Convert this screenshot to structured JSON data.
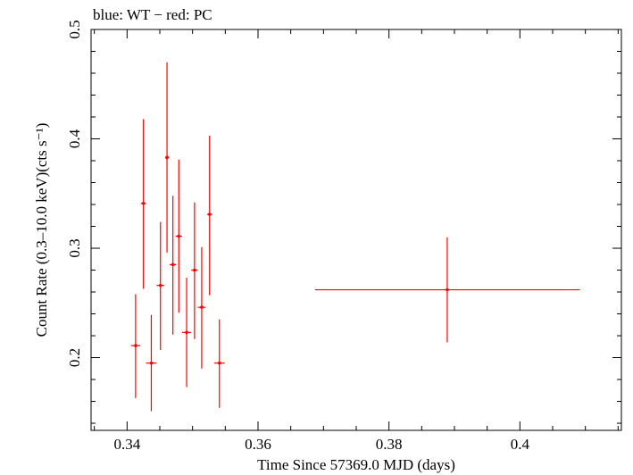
{
  "chart_data": {
    "type": "scatter",
    "title": "blue: WT − red: PC",
    "xlabel": "Time Since 57369.0 MJD (days)",
    "ylabel": "Count Rate (0.3–10.0 keV)(cts s⁻¹)",
    "xlim": [
      0.3345,
      0.4155
    ],
    "ylim": [
      0.1335,
      0.5
    ],
    "x_ticks": [
      0.34,
      0.36,
      0.38,
      0.4
    ],
    "x_tick_labels": [
      "0.34",
      "0.36",
      "0.38",
      "0.4"
    ],
    "y_ticks": [
      0.2,
      0.3,
      0.4,
      0.5
    ],
    "y_tick_labels": [
      "0.2",
      "0.3",
      "0.4",
      "0.5"
    ],
    "grid": false,
    "series": [
      {
        "color": "#ff0000",
        "points": [
          {
            "x": 0.3413,
            "y": 0.211,
            "xerr": 0.0007,
            "ylo": 0.163,
            "yhi": 0.258
          },
          {
            "x": 0.3425,
            "y": 0.341,
            "xerr": 0.0004,
            "ylo": 0.263,
            "yhi": 0.418
          },
          {
            "x": 0.3437,
            "y": 0.195,
            "xerr": 0.0008,
            "ylo": 0.151,
            "yhi": 0.239
          },
          {
            "x": 0.3451,
            "y": 0.266,
            "xerr": 0.0006,
            "ylo": 0.207,
            "yhi": 0.324
          },
          {
            "x": 0.3461,
            "y": 0.383,
            "xerr": 0.0003,
            "ylo": 0.296,
            "yhi": 0.47
          },
          {
            "x": 0.347,
            "y": 0.285,
            "xerr": 0.0005,
            "ylo": 0.221,
            "yhi": 0.348
          },
          {
            "x": 0.3479,
            "y": 0.311,
            "xerr": 0.0005,
            "ylo": 0.241,
            "yhi": 0.381
          },
          {
            "x": 0.3491,
            "y": 0.223,
            "xerr": 0.0007,
            "ylo": 0.173,
            "yhi": 0.273
          },
          {
            "x": 0.3503,
            "y": 0.28,
            "xerr": 0.0005,
            "ylo": 0.217,
            "yhi": 0.342
          },
          {
            "x": 0.3514,
            "y": 0.246,
            "xerr": 0.0006,
            "ylo": 0.19,
            "yhi": 0.301
          },
          {
            "x": 0.3526,
            "y": 0.331,
            "xerr": 0.0004,
            "ylo": 0.257,
            "yhi": 0.403
          },
          {
            "x": 0.3541,
            "y": 0.195,
            "xerr": 0.0008,
            "ylo": 0.154,
            "yhi": 0.235
          },
          {
            "x": 0.3889,
            "y": 0.262,
            "xerr": 0.0202,
            "ylo": 0.214,
            "yhi": 0.31
          }
        ]
      }
    ]
  }
}
